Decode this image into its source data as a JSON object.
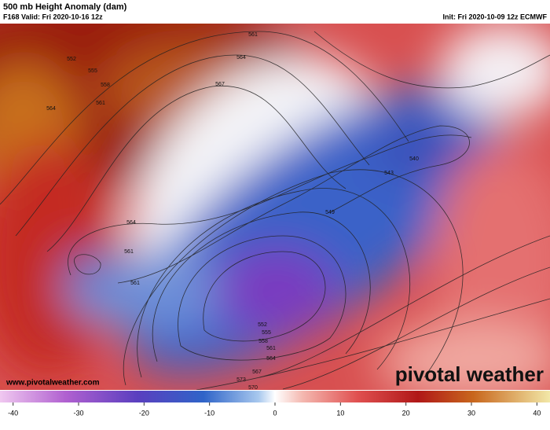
{
  "header": {
    "title": "500 mb Height Anomaly (dam)",
    "valid": "F168 Valid: Fri 2020-10-16 12z",
    "init": "Init: Fri 2020-10-09 12z ECMWF"
  },
  "map": {
    "contour_labels": [
      "561",
      "564",
      "567",
      "552",
      "555",
      "558",
      "561",
      "564",
      "564",
      "561",
      "561",
      "540",
      "543",
      "549",
      "552",
      "555",
      "558",
      "561",
      "564",
      "567",
      "570",
      "573"
    ]
  },
  "footer": {
    "url": "www.pivotalweather.com",
    "brand": "pivotal weather"
  },
  "colorbar": {
    "lim": [
      -42,
      42
    ],
    "ticks": [
      -40,
      -30,
      -20,
      -10,
      0,
      10,
      20,
      30,
      40
    ]
  }
}
